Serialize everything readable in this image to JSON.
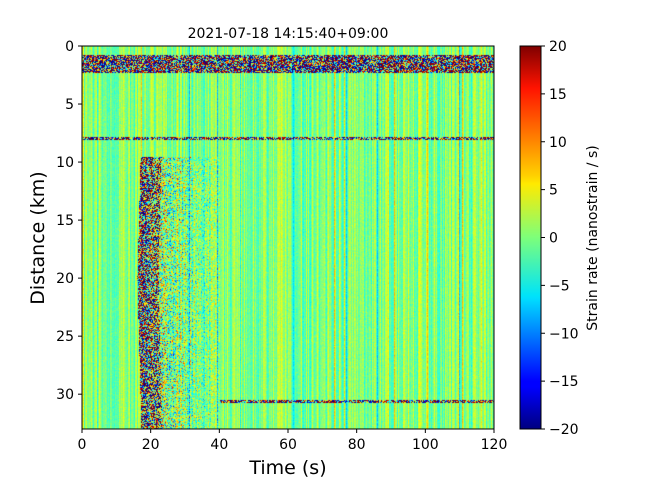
{
  "chart_data": {
    "type": "heatmap",
    "title": "2021-07-18 14:15:40+09:00",
    "xlabel": "Time (s)",
    "ylabel": "Distance (km)",
    "xlim": [
      0,
      120
    ],
    "ylim": [
      33,
      0
    ],
    "x_ticks": [
      0,
      20,
      40,
      60,
      80,
      100,
      120
    ],
    "y_ticks": [
      0,
      5,
      10,
      15,
      20,
      25,
      30
    ],
    "colorbar": {
      "label": "Strain rate (nanostrain / s)",
      "colormap": "jet",
      "range": [
        -20,
        20
      ],
      "ticks": [
        20,
        15,
        10,
        5,
        0,
        -5,
        -10,
        -15,
        -20
      ],
      "tick_labels": [
        "20",
        "15",
        "10",
        "5",
        "0",
        "−5",
        "−10",
        "−15",
        "−20"
      ]
    },
    "background_level": 0,
    "features": [
      {
        "kind": "strong-band",
        "distance_km": [
          0.7,
          2.3
        ],
        "time_s": [
          0,
          120
        ]
      },
      {
        "kind": "thin-line",
        "distance_km": 7.9,
        "time_s": [
          0,
          120
        ]
      },
      {
        "kind": "thin-line",
        "distance_km": 30.6,
        "time_s": [
          40,
          120
        ]
      },
      {
        "kind": "arrival-zone",
        "distance_km": [
          9.5,
          33
        ],
        "time_s": [
          16,
          40
        ]
      }
    ]
  }
}
